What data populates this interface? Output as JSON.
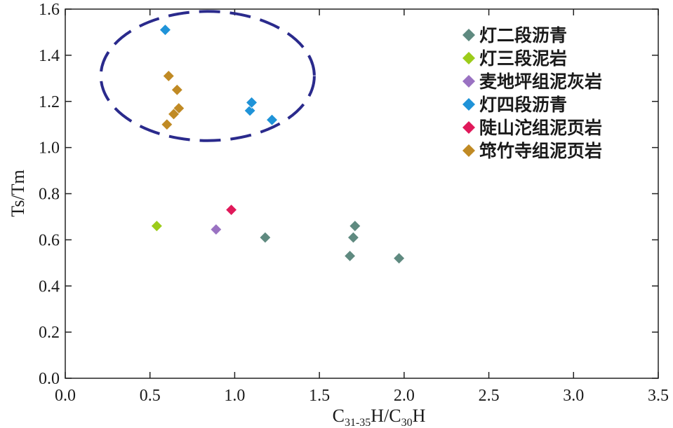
{
  "chart_data": {
    "type": "scatter",
    "xlabel": {
      "base1": "C",
      "sub1": "31-35",
      "mid": "H/C",
      "sub2": "30",
      "tail": "H"
    },
    "ylabel": "Ts/Tm",
    "xlim": [
      0,
      3.5
    ],
    "ylim": [
      0,
      1.6
    ],
    "xticks": [
      "0.0",
      "0.5",
      "1.0",
      "1.5",
      "2.0",
      "2.5",
      "3.0",
      "3.5"
    ],
    "yticks": [
      "0.0",
      "0.2",
      "0.4",
      "0.6",
      "0.8",
      "1.0",
      "1.2",
      "1.4",
      "1.6"
    ],
    "legend_position": "top-right",
    "marker": "diamond",
    "series": [
      {
        "name": "灯二段沥青",
        "color": "#5f8a80",
        "points": [
          [
            1.18,
            0.61
          ],
          [
            1.68,
            0.53
          ],
          [
            1.7,
            0.61
          ],
          [
            1.71,
            0.66
          ],
          [
            1.97,
            0.52
          ]
        ]
      },
      {
        "name": "灯三段泥岩",
        "color": "#9ccc1a",
        "points": [
          [
            0.54,
            0.66
          ]
        ]
      },
      {
        "name": "麦地坪组泥灰岩",
        "color": "#9a72c2",
        "points": [
          [
            0.89,
            0.645
          ]
        ]
      },
      {
        "name": "灯四段沥青",
        "color": "#1f93d8",
        "points": [
          [
            0.59,
            1.51
          ],
          [
            1.09,
            1.16
          ],
          [
            1.1,
            1.195
          ],
          [
            1.22,
            1.12
          ]
        ]
      },
      {
        "name": "陡山沱组泥页岩",
        "color": "#e0195a",
        "points": [
          [
            0.98,
            0.73
          ]
        ]
      },
      {
        "name": "筇竹寺组泥页岩",
        "color": "#c08a24",
        "points": [
          [
            0.61,
            1.31
          ],
          [
            0.66,
            1.25
          ],
          [
            0.67,
            1.17
          ],
          [
            0.64,
            1.145
          ],
          [
            0.6,
            1.1
          ]
        ]
      }
    ],
    "annotations": [
      {
        "type": "dashed-ellipse",
        "color": "#2a2a8c",
        "center": [
          0.84,
          1.31
        ],
        "radius_x": 0.63,
        "radius_y": 0.28
      }
    ]
  }
}
